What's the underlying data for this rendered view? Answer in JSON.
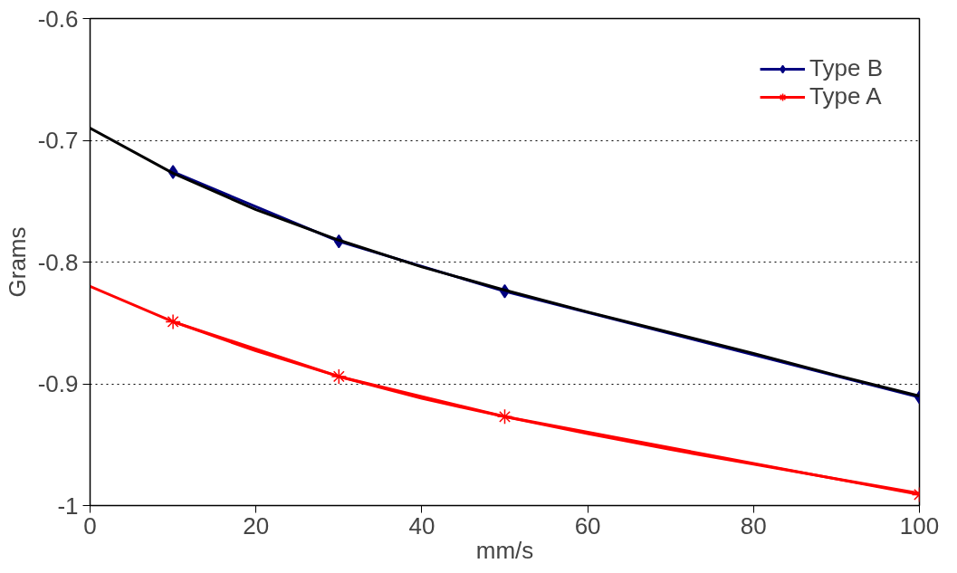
{
  "chart_data": {
    "type": "line",
    "xlabel": "mm/s",
    "ylabel": "Grams",
    "xlim": [
      0,
      100
    ],
    "ylim": [
      -1,
      -0.6
    ],
    "xticks": [
      0,
      20,
      40,
      60,
      80,
      100
    ],
    "yticks": [
      -1,
      -0.9,
      -0.8,
      -0.7,
      -0.6
    ],
    "grid": "y",
    "legend": "top right",
    "series": [
      {
        "name": "Type B",
        "color": "#000080",
        "marker": "diamond",
        "x": [
          10,
          30,
          50,
          100
        ],
        "values": [
          -0.726,
          -0.783,
          -0.824,
          -0.911
        ]
      },
      {
        "name": "Type A",
        "color": "#ff0000",
        "marker": "cross",
        "x": [
          10,
          30,
          50,
          100
        ],
        "values": [
          -0.849,
          -0.894,
          -0.927,
          -0.991
        ]
      },
      {
        "color": "#000000",
        "marker": "none",
        "x": [
          0,
          10,
          20,
          30,
          40,
          50,
          60,
          70,
          80,
          90,
          100
        ],
        "values": [
          -0.69,
          -0.727,
          -0.757,
          -0.782,
          -0.804,
          -0.823,
          -0.841,
          -0.858,
          -0.875,
          -0.893,
          -0.91
        ]
      },
      {
        "color": "#ff0000",
        "marker": "none",
        "x": [
          0,
          10,
          20,
          30,
          40,
          50,
          60,
          70,
          80,
          90,
          100
        ],
        "values": [
          -0.82,
          -0.849,
          -0.873,
          -0.894,
          -0.912,
          -0.927,
          -0.941,
          -0.954,
          -0.966,
          -0.978,
          -0.99
        ]
      }
    ]
  }
}
